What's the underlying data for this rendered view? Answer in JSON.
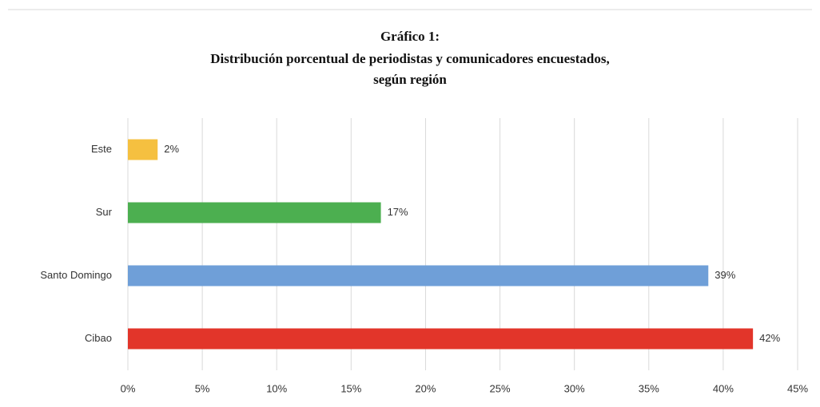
{
  "chart_data": {
    "type": "barh",
    "title": [
      "Gráfico 1:",
      "Distribución porcentual de periodistas y comunicadores encuestados,",
      "según región"
    ],
    "categories": [
      "Este",
      "Sur",
      "Santo Domingo",
      "Cibao"
    ],
    "values": [
      2,
      17,
      39,
      42
    ],
    "value_labels": [
      "2%",
      "17%",
      "39%",
      "42%"
    ],
    "colors": [
      "#f5c040",
      "#4caf50",
      "#6f9fd8",
      "#e2352a"
    ],
    "xlim": [
      0,
      45
    ],
    "xticks": [
      {
        "value": 0,
        "label": "0%"
      },
      {
        "value": 5,
        "label": "5%"
      },
      {
        "value": 10,
        "label": "10%"
      },
      {
        "value": 15,
        "label": "15%"
      },
      {
        "value": 20,
        "label": "20%"
      },
      {
        "value": 25,
        "label": "25%"
      },
      {
        "value": 30,
        "label": "30%"
      },
      {
        "value": 35,
        "label": "35%"
      },
      {
        "value": 40,
        "label": "40%"
      },
      {
        "value": 45,
        "label": "45%"
      }
    ],
    "grid": true
  }
}
